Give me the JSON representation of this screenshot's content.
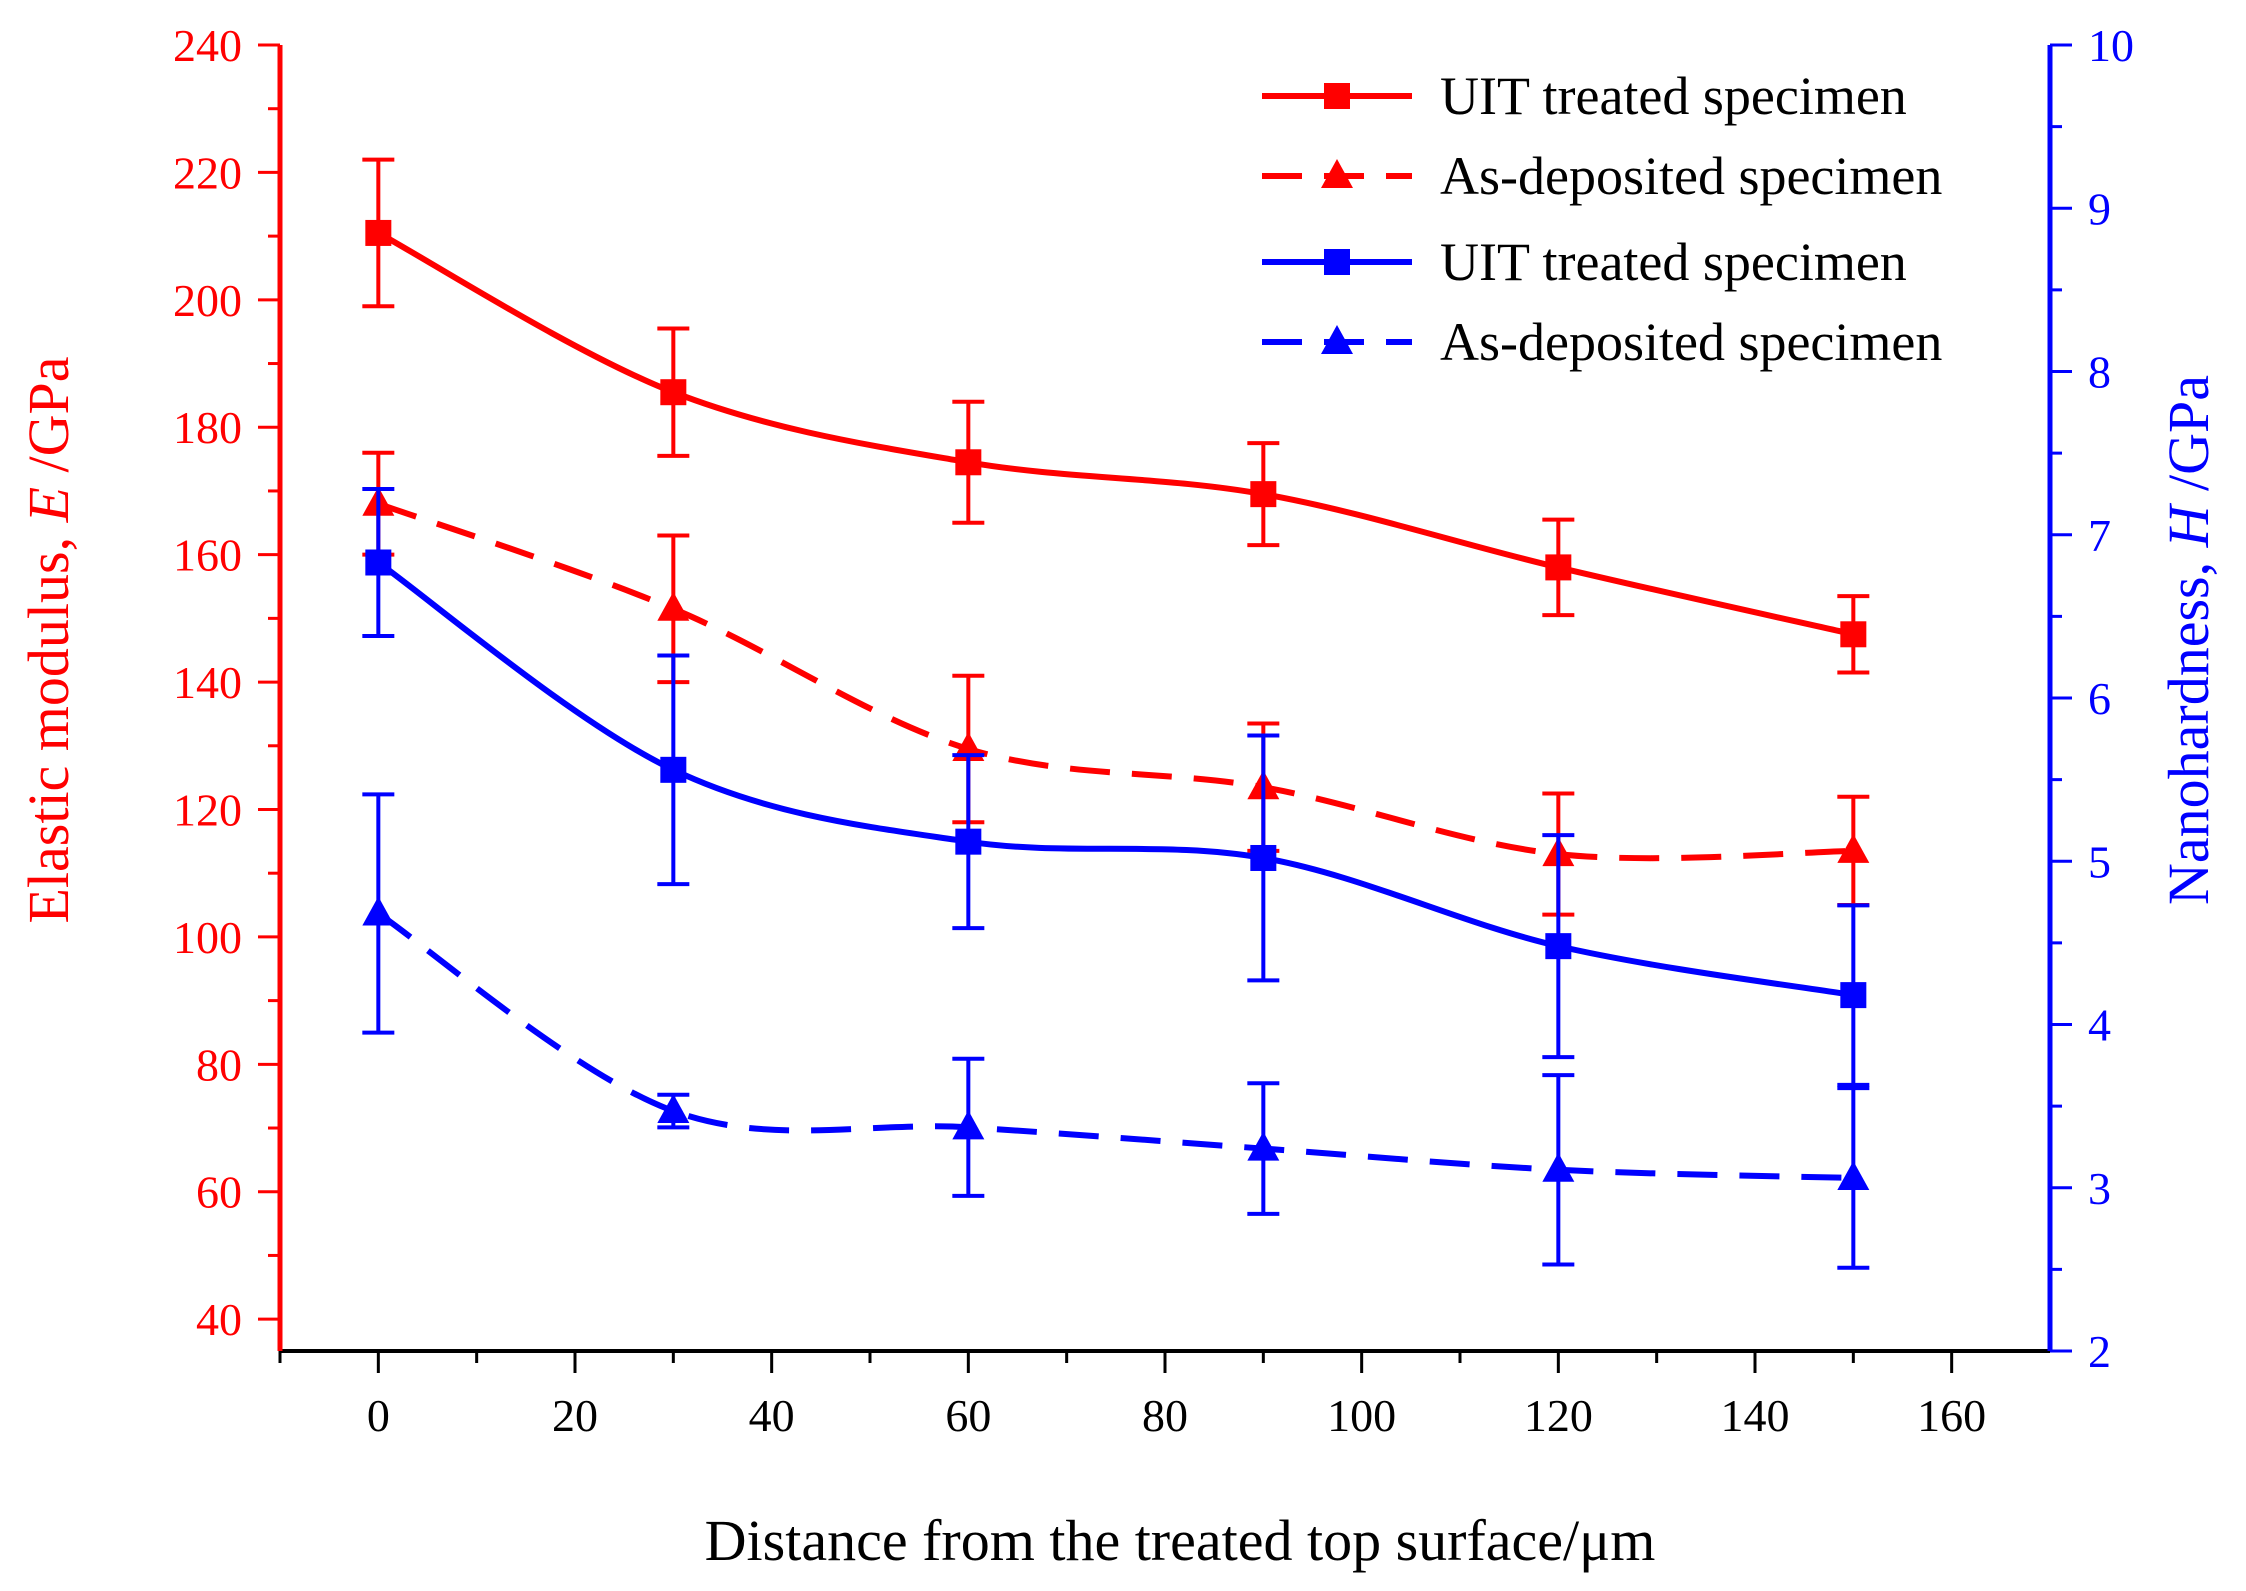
{
  "chart_data": {
    "type": "line",
    "xlabel": "Distance from the treated top surface/μm",
    "ylabel_left": {
      "prefix": "Elastic modulus, ",
      "symbol": "E",
      "unit": " /GPa"
    },
    "ylabel_right": {
      "prefix": "Nanohardness, ",
      "symbol": "H",
      "unit": " /GPa"
    },
    "xlim": [
      -10,
      170
    ],
    "xticks": [
      0,
      20,
      40,
      60,
      80,
      100,
      120,
      140,
      160
    ],
    "ylim_left": [
      35,
      240
    ],
    "yticks_left": [
      40,
      60,
      80,
      100,
      120,
      140,
      160,
      180,
      200,
      220,
      240
    ],
    "ylim_right": [
      2,
      10
    ],
    "yticks_right": [
      2,
      3,
      4,
      5,
      6,
      7,
      8,
      9,
      10
    ],
    "colors": {
      "red": "#ff0000",
      "blue": "#0000ff",
      "axis": "#000000"
    },
    "series": [
      {
        "name": "UIT treated specimen",
        "axis": "left",
        "color": "#ff0000",
        "dash": false,
        "marker": "square",
        "x": [
          0,
          30,
          60,
          90,
          120,
          150
        ],
        "y": [
          210.5,
          185.5,
          174.5,
          169.5,
          158,
          147.5
        ],
        "err": [
          11.5,
          10,
          9.5,
          8,
          7.5,
          6
        ]
      },
      {
        "name": "As-deposited specimen",
        "axis": "left",
        "color": "#ff0000",
        "dash": true,
        "marker": "triangle",
        "x": [
          0,
          30,
          60,
          90,
          120,
          150
        ],
        "y": [
          168,
          151.5,
          129.5,
          123.5,
          113,
          113.5
        ],
        "err": [
          8,
          11.5,
          11.5,
          10,
          9.5,
          8.5
        ]
      },
      {
        "name": "UIT treated specimen",
        "axis": "right",
        "color": "#0000ff",
        "dash": false,
        "marker": "square",
        "x": [
          0,
          30,
          60,
          90,
          120,
          150
        ],
        "y": [
          6.83,
          5.56,
          5.12,
          5.02,
          4.48,
          4.18
        ],
        "err": [
          0.45,
          0.7,
          0.53,
          0.75,
          0.68,
          0.55
        ]
      },
      {
        "name": "As-deposited specimen",
        "axis": "right",
        "color": "#0000ff",
        "dash": true,
        "marker": "triangle",
        "x": [
          0,
          30,
          60,
          90,
          120,
          150
        ],
        "y": [
          4.68,
          3.47,
          3.37,
          3.24,
          3.11,
          3.06
        ],
        "err": [
          0.73,
          0.1,
          0.42,
          0.4,
          0.58,
          0.55
        ]
      }
    ],
    "legend": [
      {
        "label": "UIT treated specimen",
        "color": "#ff0000",
        "dash": false,
        "marker": "square"
      },
      {
        "label": "As-deposited specimen",
        "color": "#ff0000",
        "dash": true,
        "marker": "triangle"
      },
      {
        "label": "UIT treated specimen",
        "color": "#0000ff",
        "dash": false,
        "marker": "square"
      },
      {
        "label": "As-deposited specimen",
        "color": "#0000ff",
        "dash": true,
        "marker": "triangle"
      }
    ]
  }
}
